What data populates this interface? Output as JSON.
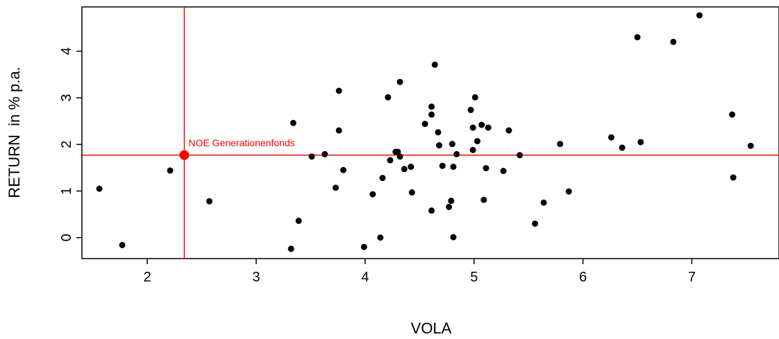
{
  "chart_data": {
    "type": "scatter",
    "xlabel": "VOLA",
    "ylabel": "RETURN  in % p.a.",
    "xlim": [
      1.4,
      7.8
    ],
    "ylim": [
      -0.45,
      4.95
    ],
    "xticks": [
      "2",
      "3",
      "4",
      "5",
      "6",
      "7"
    ],
    "yticks": [
      "0",
      "1",
      "2",
      "3",
      "4"
    ],
    "grid": false,
    "highlight": {
      "label": "NOE Generationenfonds",
      "x": 2.34,
      "y": 1.77,
      "color": "#ff0000"
    },
    "points": [
      {
        "x": 1.56,
        "y": 1.05
      },
      {
        "x": 1.77,
        "y": -0.16
      },
      {
        "x": 2.21,
        "y": 1.44
      },
      {
        "x": 2.57,
        "y": 0.78
      },
      {
        "x": 3.32,
        "y": -0.24
      },
      {
        "x": 3.34,
        "y": 2.46
      },
      {
        "x": 3.39,
        "y": 0.36
      },
      {
        "x": 3.51,
        "y": 1.74
      },
      {
        "x": 3.63,
        "y": 1.79
      },
      {
        "x": 3.73,
        "y": 1.07
      },
      {
        "x": 3.76,
        "y": 3.15
      },
      {
        "x": 3.76,
        "y": 2.3
      },
      {
        "x": 3.8,
        "y": 1.45
      },
      {
        "x": 3.99,
        "y": -0.2
      },
      {
        "x": 4.07,
        "y": 0.93
      },
      {
        "x": 4.14,
        "y": 0.0
      },
      {
        "x": 4.16,
        "y": 1.28
      },
      {
        "x": 4.21,
        "y": 3.01
      },
      {
        "x": 4.23,
        "y": 1.66
      },
      {
        "x": 4.28,
        "y": 1.84
      },
      {
        "x": 4.3,
        "y": 1.84
      },
      {
        "x": 4.32,
        "y": 3.34
      },
      {
        "x": 4.32,
        "y": 1.74
      },
      {
        "x": 4.36,
        "y": 1.47
      },
      {
        "x": 4.42,
        "y": 1.52
      },
      {
        "x": 4.43,
        "y": 0.97
      },
      {
        "x": 4.55,
        "y": 2.44
      },
      {
        "x": 4.61,
        "y": 2.81
      },
      {
        "x": 4.61,
        "y": 2.64
      },
      {
        "x": 4.61,
        "y": 0.58
      },
      {
        "x": 4.64,
        "y": 3.71
      },
      {
        "x": 4.67,
        "y": 2.26
      },
      {
        "x": 4.68,
        "y": 1.98
      },
      {
        "x": 4.71,
        "y": 1.54
      },
      {
        "x": 4.77,
        "y": 0.66
      },
      {
        "x": 4.79,
        "y": 0.79
      },
      {
        "x": 4.8,
        "y": 2.01
      },
      {
        "x": 4.81,
        "y": 1.52
      },
      {
        "x": 4.81,
        "y": 0.01
      },
      {
        "x": 4.84,
        "y": 1.79
      },
      {
        "x": 4.97,
        "y": 2.74
      },
      {
        "x": 4.99,
        "y": 2.36
      },
      {
        "x": 4.99,
        "y": 1.88
      },
      {
        "x": 5.01,
        "y": 3.01
      },
      {
        "x": 5.03,
        "y": 2.07
      },
      {
        "x": 5.07,
        "y": 2.42
      },
      {
        "x": 5.09,
        "y": 0.81
      },
      {
        "x": 5.11,
        "y": 1.49
      },
      {
        "x": 5.13,
        "y": 2.36
      },
      {
        "x": 5.27,
        "y": 1.43
      },
      {
        "x": 5.32,
        "y": 2.3
      },
      {
        "x": 5.42,
        "y": 1.77
      },
      {
        "x": 5.56,
        "y": 0.3
      },
      {
        "x": 5.64,
        "y": 0.75
      },
      {
        "x": 5.79,
        "y": 2.01
      },
      {
        "x": 5.87,
        "y": 0.99
      },
      {
        "x": 6.26,
        "y": 2.15
      },
      {
        "x": 6.36,
        "y": 1.93
      },
      {
        "x": 6.5,
        "y": 4.3
      },
      {
        "x": 6.53,
        "y": 2.05
      },
      {
        "x": 6.83,
        "y": 4.2
      },
      {
        "x": 7.07,
        "y": 4.77
      },
      {
        "x": 7.37,
        "y": 2.64
      },
      {
        "x": 7.38,
        "y": 1.29
      },
      {
        "x": 7.54,
        "y": 1.97
      }
    ]
  },
  "colors": {
    "points": "#000000",
    "highlight": "#ff0000",
    "axes": "#000000"
  }
}
